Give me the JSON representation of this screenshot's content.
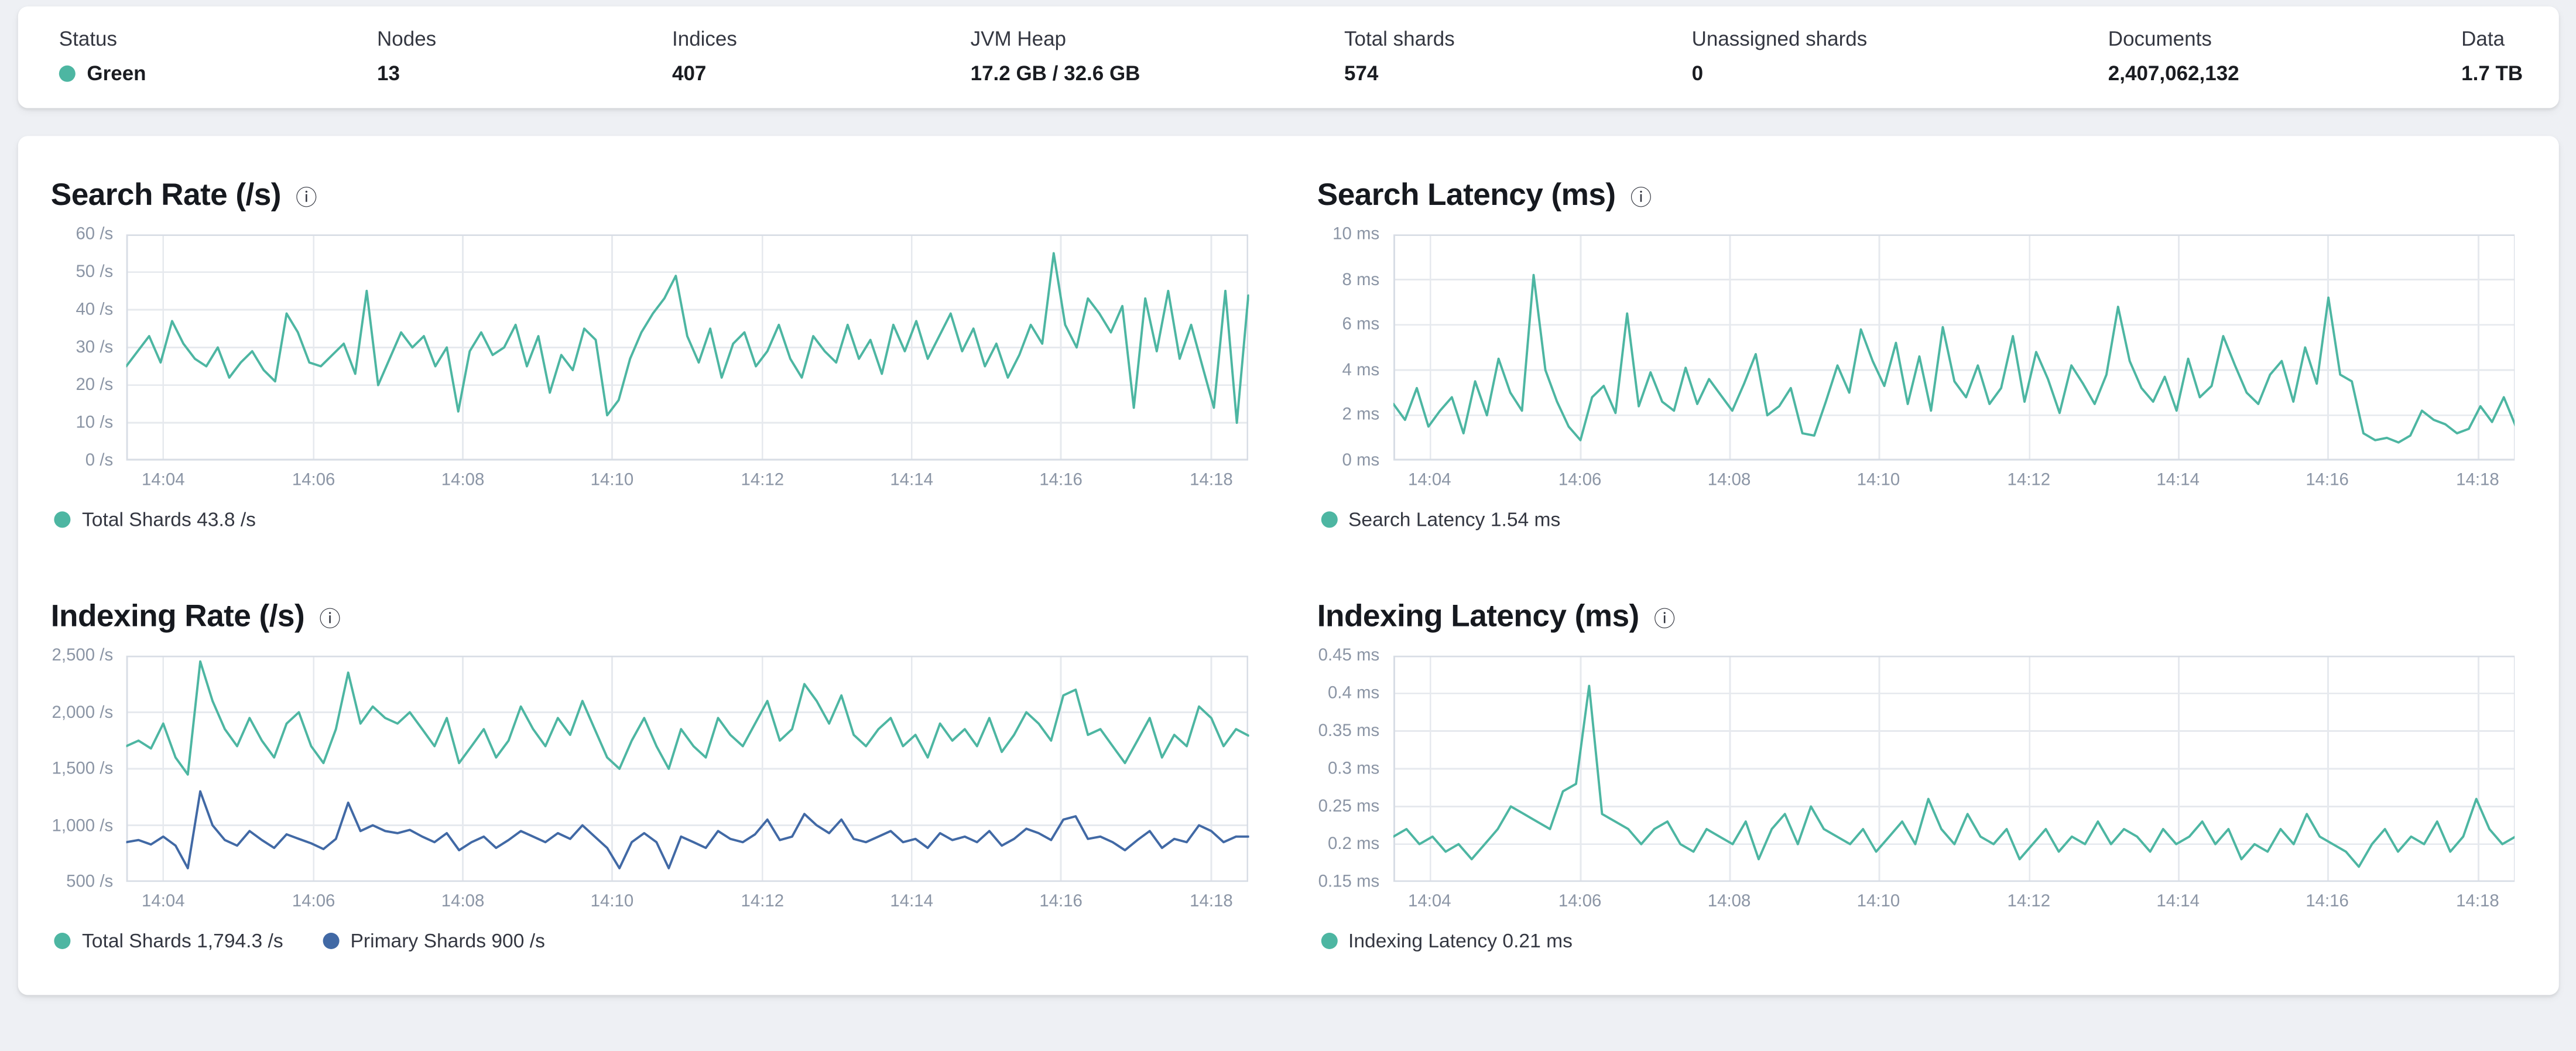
{
  "colors": {
    "teal": "#4db6a2",
    "blue": "#4169a5",
    "grid": "#e6e9ee",
    "plot_border": "#d8dde5"
  },
  "stats": [
    {
      "key": "status",
      "label": "Status",
      "value": "Green",
      "dot_color": "teal"
    },
    {
      "key": "nodes",
      "label": "Nodes",
      "value": "13"
    },
    {
      "key": "indices",
      "label": "Indices",
      "value": "407"
    },
    {
      "key": "jvm-heap",
      "label": "JVM Heap",
      "value": "17.2 GB / 32.6 GB"
    },
    {
      "key": "total-shards",
      "label": "Total shards",
      "value": "574"
    },
    {
      "key": "unassigned-shards",
      "label": "Unassigned shards",
      "value": "0"
    },
    {
      "key": "documents",
      "label": "Documents",
      "value": "2,407,062,132"
    },
    {
      "key": "data",
      "label": "Data",
      "value": "1.7 TB"
    }
  ],
  "chart_data": [
    {
      "id": "search-rate",
      "type": "line",
      "title": "Search Rate (/s)",
      "ylim": [
        0,
        60
      ],
      "y_ticks": [
        0,
        10,
        20,
        30,
        40,
        50,
        60
      ],
      "y_tick_labels": [
        "0 /s",
        "10 /s",
        "20 /s",
        "30 /s",
        "40 /s",
        "50 /s",
        "60 /s"
      ],
      "x_ticks": [
        {
          "f": 0.033,
          "label": "14:04"
        },
        {
          "f": 0.167,
          "label": "14:06"
        },
        {
          "f": 0.3,
          "label": "14:08"
        },
        {
          "f": 0.433,
          "label": "14:10"
        },
        {
          "f": 0.567,
          "label": "14:12"
        },
        {
          "f": 0.7,
          "label": "14:14"
        },
        {
          "f": 0.833,
          "label": "14:16"
        },
        {
          "f": 0.967,
          "label": "14:18"
        }
      ],
      "series": [
        {
          "name": "Total Shards",
          "current": "43.8 /s",
          "color": "teal",
          "values": [
            25,
            29,
            33,
            26,
            37,
            31,
            27,
            25,
            30,
            22,
            26,
            29,
            24,
            21,
            39,
            34,
            26,
            25,
            28,
            31,
            23,
            45,
            20,
            27,
            34,
            30,
            33,
            25,
            30,
            13,
            29,
            34,
            28,
            30,
            36,
            25,
            33,
            18,
            28,
            24,
            35,
            32,
            12,
            16,
            27,
            34,
            39,
            43,
            49,
            33,
            26,
            35,
            22,
            31,
            34,
            25,
            29,
            36,
            27,
            22,
            33,
            29,
            26,
            36,
            27,
            32,
            23,
            36,
            29,
            37,
            27,
            33,
            39,
            29,
            35,
            25,
            31,
            22,
            28,
            36,
            31,
            55,
            36,
            30,
            43,
            39,
            34,
            41,
            14,
            43,
            29,
            45,
            27,
            36,
            25,
            14,
            45,
            10,
            43.8
          ]
        }
      ]
    },
    {
      "id": "search-latency",
      "type": "line",
      "title": "Search Latency (ms)",
      "ylim": [
        0,
        10
      ],
      "y_ticks": [
        0,
        2,
        4,
        6,
        8,
        10
      ],
      "y_tick_labels": [
        "0 ms",
        "2 ms",
        "4 ms",
        "6 ms",
        "8 ms",
        "10 ms"
      ],
      "x_ticks": [
        {
          "f": 0.033,
          "label": "14:04"
        },
        {
          "f": 0.167,
          "label": "14:06"
        },
        {
          "f": 0.3,
          "label": "14:08"
        },
        {
          "f": 0.433,
          "label": "14:10"
        },
        {
          "f": 0.567,
          "label": "14:12"
        },
        {
          "f": 0.7,
          "label": "14:14"
        },
        {
          "f": 0.833,
          "label": "14:16"
        },
        {
          "f": 0.967,
          "label": "14:18"
        }
      ],
      "series": [
        {
          "name": "Search Latency",
          "current": "1.54 ms",
          "color": "teal",
          "values": [
            2.5,
            1.8,
            3.2,
            1.5,
            2.2,
            2.8,
            1.2,
            3.5,
            2.0,
            4.5,
            3.0,
            2.2,
            8.2,
            4.0,
            2.6,
            1.5,
            0.9,
            2.8,
            3.3,
            2.1,
            6.5,
            2.4,
            3.9,
            2.6,
            2.2,
            4.1,
            2.5,
            3.6,
            2.9,
            2.2,
            3.4,
            4.7,
            2.0,
            2.4,
            3.2,
            1.2,
            1.1,
            2.6,
            4.2,
            3.0,
            5.8,
            4.4,
            3.3,
            5.2,
            2.5,
            4.6,
            2.2,
            5.9,
            3.5,
            2.8,
            4.2,
            2.5,
            3.2,
            5.5,
            2.6,
            4.8,
            3.6,
            2.1,
            4.2,
            3.4,
            2.5,
            3.8,
            6.8,
            4.4,
            3.2,
            2.6,
            3.7,
            2.2,
            4.5,
            2.8,
            3.3,
            5.5,
            4.2,
            3.0,
            2.5,
            3.8,
            4.4,
            2.6,
            5.0,
            3.4,
            7.2,
            3.8,
            3.5,
            1.2,
            0.9,
            1.0,
            0.8,
            1.1,
            2.2,
            1.8,
            1.6,
            1.2,
            1.4,
            2.4,
            1.7,
            2.8,
            1.54
          ]
        }
      ]
    },
    {
      "id": "indexing-rate",
      "type": "line",
      "title": "Indexing Rate (/s)",
      "ylim": [
        500,
        2500
      ],
      "y_ticks": [
        500,
        1000,
        1500,
        2000,
        2500
      ],
      "y_tick_labels": [
        "500 /s",
        "1,000 /s",
        "1,500 /s",
        "2,000 /s",
        "2,500 /s"
      ],
      "x_ticks": [
        {
          "f": 0.033,
          "label": "14:04"
        },
        {
          "f": 0.167,
          "label": "14:06"
        },
        {
          "f": 0.3,
          "label": "14:08"
        },
        {
          "f": 0.433,
          "label": "14:10"
        },
        {
          "f": 0.567,
          "label": "14:12"
        },
        {
          "f": 0.7,
          "label": "14:14"
        },
        {
          "f": 0.833,
          "label": "14:16"
        },
        {
          "f": 0.967,
          "label": "14:18"
        }
      ],
      "series": [
        {
          "name": "Total Shards",
          "current": "1,794.3 /s",
          "color": "teal",
          "values": [
            1700,
            1750,
            1680,
            1900,
            1600,
            1450,
            2450,
            2100,
            1850,
            1700,
            1950,
            1750,
            1600,
            1900,
            2000,
            1700,
            1550,
            1850,
            2350,
            1900,
            2050,
            1950,
            1900,
            2000,
            1850,
            1700,
            1950,
            1550,
            1700,
            1850,
            1600,
            1750,
            2050,
            1850,
            1700,
            1950,
            1800,
            2100,
            1850,
            1600,
            1500,
            1750,
            1950,
            1700,
            1500,
            1850,
            1700,
            1600,
            1950,
            1800,
            1700,
            1900,
            2100,
            1750,
            1850,
            2250,
            2100,
            1900,
            2150,
            1800,
            1700,
            1850,
            1950,
            1700,
            1800,
            1600,
            1900,
            1750,
            1850,
            1700,
            1950,
            1650,
            1800,
            2000,
            1900,
            1750,
            2150,
            2200,
            1800,
            1850,
            1700,
            1550,
            1750,
            1950,
            1600,
            1800,
            1700,
            2050,
            1950,
            1700,
            1850,
            1794.3
          ]
        },
        {
          "name": "Primary Shards",
          "current": "900 /s",
          "color": "blue",
          "values": [
            850,
            870,
            830,
            900,
            820,
            620,
            1300,
            1000,
            870,
            820,
            950,
            870,
            800,
            920,
            880,
            840,
            790,
            880,
            1200,
            950,
            1000,
            950,
            930,
            960,
            900,
            850,
            930,
            780,
            850,
            900,
            800,
            870,
            950,
            900,
            850,
            930,
            880,
            1000,
            900,
            800,
            620,
            850,
            930,
            850,
            620,
            900,
            850,
            800,
            950,
            880,
            850,
            920,
            1050,
            870,
            900,
            1100,
            1000,
            930,
            1050,
            880,
            850,
            900,
            950,
            850,
            880,
            800,
            930,
            870,
            900,
            850,
            950,
            820,
            880,
            970,
            930,
            870,
            1050,
            1080,
            880,
            900,
            850,
            780,
            870,
            950,
            800,
            880,
            850,
            1000,
            950,
            850,
            900,
            900
          ]
        }
      ]
    },
    {
      "id": "indexing-latency",
      "type": "line",
      "title": "Indexing Latency (ms)",
      "ylim": [
        0.15,
        0.45
      ],
      "y_ticks": [
        0.15,
        0.2,
        0.25,
        0.3,
        0.35,
        0.4,
        0.45
      ],
      "y_tick_labels": [
        "0.15 ms",
        "0.2 ms",
        "0.25 ms",
        "0.3 ms",
        "0.35 ms",
        "0.4 ms",
        "0.45 ms"
      ],
      "x_ticks": [
        {
          "f": 0.033,
          "label": "14:04"
        },
        {
          "f": 0.167,
          "label": "14:06"
        },
        {
          "f": 0.3,
          "label": "14:08"
        },
        {
          "f": 0.433,
          "label": "14:10"
        },
        {
          "f": 0.567,
          "label": "14:12"
        },
        {
          "f": 0.7,
          "label": "14:14"
        },
        {
          "f": 0.833,
          "label": "14:16"
        },
        {
          "f": 0.967,
          "label": "14:18"
        }
      ],
      "series": [
        {
          "name": "Indexing Latency",
          "current": "0.21 ms",
          "color": "teal",
          "values": [
            0.21,
            0.22,
            0.2,
            0.21,
            0.19,
            0.2,
            0.18,
            0.2,
            0.22,
            0.25,
            0.24,
            0.23,
            0.22,
            0.27,
            0.28,
            0.41,
            0.24,
            0.23,
            0.22,
            0.2,
            0.22,
            0.23,
            0.2,
            0.19,
            0.22,
            0.21,
            0.2,
            0.23,
            0.18,
            0.22,
            0.24,
            0.2,
            0.25,
            0.22,
            0.21,
            0.2,
            0.22,
            0.19,
            0.21,
            0.23,
            0.2,
            0.26,
            0.22,
            0.2,
            0.24,
            0.21,
            0.2,
            0.22,
            0.18,
            0.2,
            0.22,
            0.19,
            0.21,
            0.2,
            0.23,
            0.2,
            0.22,
            0.21,
            0.19,
            0.22,
            0.2,
            0.21,
            0.23,
            0.2,
            0.22,
            0.18,
            0.2,
            0.19,
            0.22,
            0.2,
            0.24,
            0.21,
            0.2,
            0.19,
            0.17,
            0.2,
            0.22,
            0.19,
            0.21,
            0.2,
            0.23,
            0.19,
            0.21,
            0.26,
            0.22,
            0.2,
            0.21
          ]
        }
      ]
    }
  ]
}
